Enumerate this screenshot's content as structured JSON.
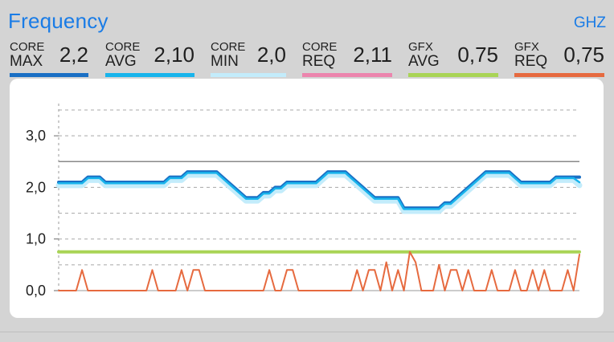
{
  "header": {
    "title": "Frequency",
    "unit": "GHZ"
  },
  "metrics": [
    {
      "line1": "CORE",
      "line2": "MAX",
      "value": "2,2",
      "color": "#1a6fc4"
    },
    {
      "line1": "CORE",
      "line2": "AVG",
      "value": "2,10",
      "color": "#18b4ec"
    },
    {
      "line1": "CORE",
      "line2": "MIN",
      "value": "2,0",
      "color": "#c3ecfb"
    },
    {
      "line1": "CORE",
      "line2": "REQ",
      "value": "2,11",
      "color": "#ec85ad"
    },
    {
      "line1": "GFX",
      "line2": "AVG",
      "value": "0,75",
      "color": "#a9d456"
    },
    {
      "line1": "GFX",
      "line2": "REQ",
      "value": "0,75",
      "color": "#e66a3f"
    }
  ],
  "chart_data": {
    "type": "line",
    "ylim": [
      0,
      3.5
    ],
    "yticks": [
      0,
      1,
      2,
      3
    ],
    "ytick_labels": [
      "0,0",
      "1,0",
      "2,0",
      "3,0"
    ],
    "reference_line": 2.5,
    "grid": "dashed horizontal",
    "x_count": 90,
    "series": [
      {
        "key": "core_min",
        "color": "#c3ecfb",
        "values": [
          2.04,
          2.04,
          2.04,
          2.04,
          2.04,
          2.14,
          2.14,
          2.14,
          2.04,
          2.04,
          2.04,
          2.04,
          2.04,
          2.04,
          2.04,
          2.04,
          2.04,
          2.04,
          2.04,
          2.14,
          2.14,
          2.14,
          2.24,
          2.24,
          2.24,
          2.24,
          2.24,
          2.24,
          2.14,
          2.04,
          1.94,
          1.84,
          1.74,
          1.74,
          1.74,
          1.84,
          1.84,
          1.94,
          1.94,
          2.04,
          2.04,
          2.04,
          2.04,
          2.04,
          2.04,
          2.14,
          2.24,
          2.24,
          2.24,
          2.24,
          2.14,
          2.04,
          1.94,
          1.84,
          1.74,
          1.74,
          1.74,
          1.74,
          1.74,
          1.54,
          1.54,
          1.54,
          1.54,
          1.54,
          1.54,
          1.54,
          1.64,
          1.64,
          1.74,
          1.84,
          1.94,
          2.04,
          2.14,
          2.24,
          2.24,
          2.24,
          2.24,
          2.24,
          2.14,
          2.04,
          2.04,
          2.04,
          2.04,
          2.04,
          2.04,
          2.14,
          2.14,
          2.14,
          2.14,
          2.04
        ]
      },
      {
        "key": "core_max",
        "color": "#1a6fc4",
        "values": [
          2.1,
          2.1,
          2.1,
          2.1,
          2.1,
          2.2,
          2.2,
          2.2,
          2.1,
          2.1,
          2.1,
          2.1,
          2.1,
          2.1,
          2.1,
          2.1,
          2.1,
          2.1,
          2.1,
          2.2,
          2.2,
          2.2,
          2.3,
          2.3,
          2.3,
          2.3,
          2.3,
          2.3,
          2.2,
          2.1,
          2.0,
          1.9,
          1.8,
          1.8,
          1.8,
          1.9,
          1.9,
          2.0,
          2.0,
          2.1,
          2.1,
          2.1,
          2.1,
          2.1,
          2.1,
          2.2,
          2.3,
          2.3,
          2.3,
          2.3,
          2.2,
          2.1,
          2.0,
          1.9,
          1.8,
          1.8,
          1.8,
          1.8,
          1.8,
          1.6,
          1.6,
          1.6,
          1.6,
          1.6,
          1.6,
          1.6,
          1.7,
          1.7,
          1.8,
          1.9,
          2.0,
          2.1,
          2.2,
          2.3,
          2.3,
          2.3,
          2.3,
          2.3,
          2.2,
          2.1,
          2.1,
          2.1,
          2.1,
          2.1,
          2.1,
          2.2,
          2.2,
          2.2,
          2.2,
          2.2
        ]
      },
      {
        "key": "core_avg",
        "color": "#18b4ec",
        "values": [
          2.08,
          2.08,
          2.08,
          2.08,
          2.08,
          2.18,
          2.18,
          2.18,
          2.08,
          2.08,
          2.08,
          2.08,
          2.08,
          2.08,
          2.08,
          2.08,
          2.08,
          2.08,
          2.08,
          2.18,
          2.18,
          2.18,
          2.28,
          2.28,
          2.28,
          2.28,
          2.28,
          2.28,
          2.18,
          2.08,
          1.98,
          1.88,
          1.78,
          1.78,
          1.78,
          1.88,
          1.88,
          1.98,
          1.98,
          2.08,
          2.08,
          2.08,
          2.08,
          2.08,
          2.08,
          2.18,
          2.28,
          2.28,
          2.28,
          2.28,
          2.18,
          2.08,
          1.98,
          1.88,
          1.78,
          1.78,
          1.78,
          1.78,
          1.78,
          1.58,
          1.58,
          1.58,
          1.58,
          1.58,
          1.58,
          1.58,
          1.68,
          1.68,
          1.78,
          1.88,
          1.98,
          2.08,
          2.18,
          2.28,
          2.28,
          2.28,
          2.28,
          2.28,
          2.18,
          2.08,
          2.08,
          2.08,
          2.08,
          2.08,
          2.08,
          2.18,
          2.18,
          2.18,
          2.18,
          2.1
        ]
      },
      {
        "key": "gfx_avg",
        "color": "#a9d456",
        "values": [
          0.75,
          0.75,
          0.75,
          0.75,
          0.75,
          0.75,
          0.75,
          0.75,
          0.75,
          0.75,
          0.75,
          0.75,
          0.75,
          0.75,
          0.75,
          0.75,
          0.75,
          0.75,
          0.75,
          0.75,
          0.75,
          0.75,
          0.75,
          0.75,
          0.75,
          0.75,
          0.75,
          0.75,
          0.75,
          0.75,
          0.75,
          0.75,
          0.75,
          0.75,
          0.75,
          0.75,
          0.75,
          0.75,
          0.75,
          0.75,
          0.75,
          0.75,
          0.75,
          0.75,
          0.75,
          0.75,
          0.75,
          0.75,
          0.75,
          0.75,
          0.75,
          0.75,
          0.75,
          0.75,
          0.75,
          0.75,
          0.75,
          0.75,
          0.75,
          0.75,
          0.75,
          0.75,
          0.75,
          0.75,
          0.75,
          0.75,
          0.75,
          0.75,
          0.75,
          0.75,
          0.75,
          0.75,
          0.75,
          0.75,
          0.75,
          0.75,
          0.75,
          0.75,
          0.75,
          0.75,
          0.75,
          0.75,
          0.75,
          0.75,
          0.75,
          0.75,
          0.75,
          0.75,
          0.75,
          0.75
        ]
      },
      {
        "key": "gfx_req",
        "color": "#e66a3f",
        "values": [
          0,
          0,
          0,
          0,
          0.4,
          0,
          0,
          0,
          0,
          0,
          0,
          0,
          0,
          0,
          0,
          0,
          0.4,
          0,
          0,
          0,
          0,
          0.4,
          0,
          0.4,
          0.4,
          0,
          0,
          0,
          0,
          0,
          0,
          0,
          0,
          0,
          0,
          0,
          0.4,
          0,
          0,
          0.4,
          0.4,
          0,
          0,
          0,
          0,
          0,
          0,
          0,
          0,
          0,
          0,
          0.4,
          0,
          0.4,
          0.4,
          0,
          0.55,
          0,
          0.4,
          0,
          0.75,
          0.55,
          0,
          0,
          0,
          0.5,
          0,
          0.4,
          0.4,
          0,
          0.4,
          0,
          0,
          0,
          0.4,
          0,
          0,
          0,
          0.4,
          0,
          0,
          0.4,
          0,
          0.4,
          0,
          0,
          0,
          0.4,
          0,
          0.7
        ]
      }
    ]
  }
}
